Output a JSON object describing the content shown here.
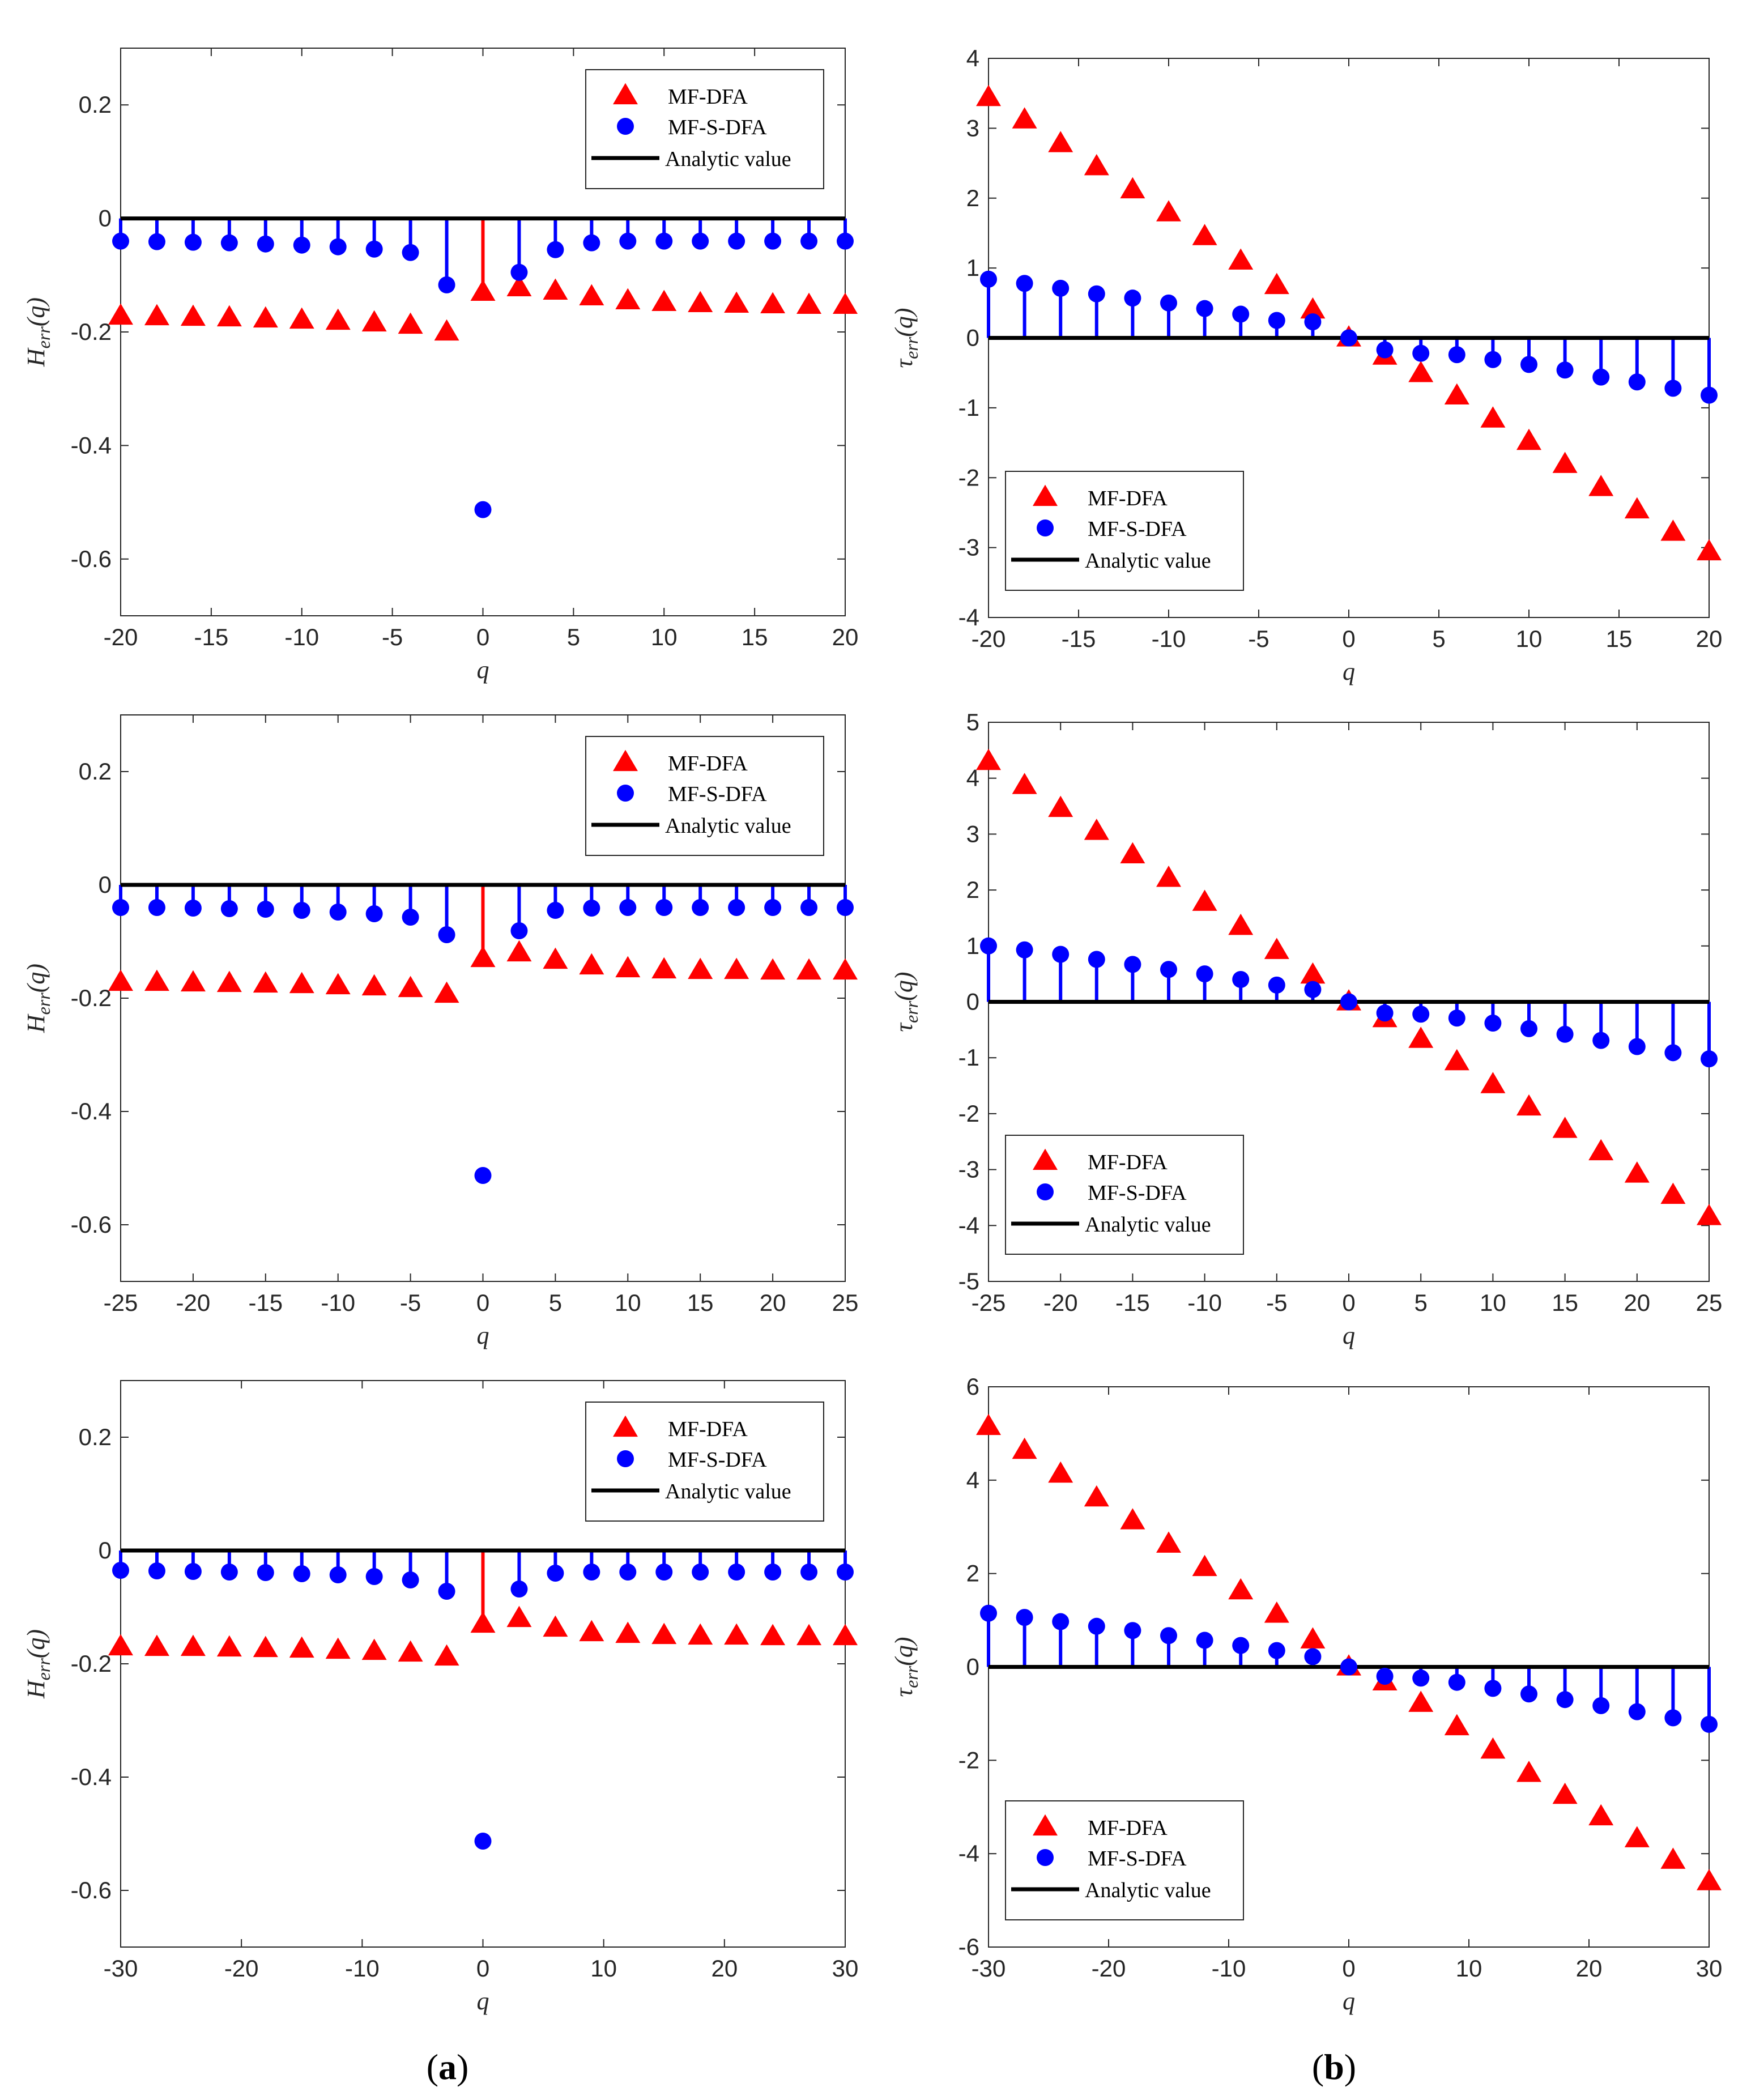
{
  "colors": {
    "mfdfa": "#ff0000",
    "mfsdfa": "#0000ff",
    "analytic": "#000000"
  },
  "legend": [
    "MF-DFA",
    "MF-S-DFA",
    "Analytic value"
  ],
  "panel_labels": {
    "a": "a",
    "b": "b"
  },
  "chart_data": [
    {
      "id": "h1",
      "type": "stem-scatter",
      "xlabel": "q",
      "ylabel_main": "H",
      "ylabel_sub": "err",
      "ylabel_arg": "(q)",
      "xlim": [
        -20,
        20
      ],
      "ylim": [
        -0.7,
        0.3
      ],
      "xticks": [
        "-20",
        "-15",
        "-10",
        "-5",
        "0",
        "5",
        "10",
        "15",
        "20"
      ],
      "xtick_values": [
        -20,
        -15,
        -10,
        -5,
        0,
        5,
        10,
        15,
        20
      ],
      "yticks": [
        "0.2",
        "0",
        "-0.2",
        "-0.4",
        "-0.6"
      ],
      "ytick_values": [
        0.2,
        0,
        -0.2,
        -0.4,
        -0.6
      ],
      "legend_pos": "top-right",
      "x": [
        -20,
        -18,
        -16,
        -14,
        -12,
        -10,
        -8,
        -6,
        -4,
        -2,
        0,
        2,
        4,
        6,
        8,
        10,
        12,
        14,
        16,
        18,
        20
      ],
      "series": [
        {
          "name": "MF-DFA",
          "values": [
            -0.172,
            -0.173,
            -0.174,
            -0.175,
            -0.177,
            -0.179,
            -0.181,
            -0.184,
            -0.188,
            -0.2,
            -0.13,
            -0.122,
            -0.128,
            -0.138,
            -0.145,
            -0.148,
            -0.15,
            -0.151,
            -0.152,
            -0.153,
            -0.153
          ],
          "stem_index": 10
        },
        {
          "name": "MF-S-DFA",
          "values": [
            -0.04,
            -0.041,
            -0.042,
            -0.043,
            -0.045,
            -0.047,
            -0.05,
            -0.054,
            -0.06,
            -0.117,
            -0.513,
            -0.095,
            -0.055,
            -0.043,
            -0.04,
            -0.04,
            -0.04,
            -0.04,
            -0.04,
            -0.04,
            -0.04
          ],
          "stem_skip_index": 10
        }
      ]
    },
    {
      "id": "t1",
      "type": "stem-scatter",
      "xlabel": "q",
      "ylabel_main": "τ",
      "ylabel_sub": "err",
      "ylabel_arg": "(q)",
      "xlim": [
        -20,
        20
      ],
      "ylim": [
        -4,
        4
      ],
      "xticks": [
        "-20",
        "-15",
        "-10",
        "-5",
        "0",
        "5",
        "10",
        "15",
        "20"
      ],
      "xtick_values": [
        -20,
        -15,
        -10,
        -5,
        0,
        5,
        10,
        15,
        20
      ],
      "yticks": [
        "4",
        "3",
        "2",
        "1",
        "0",
        "-1",
        "-2",
        "-3",
        "-4"
      ],
      "ytick_values": [
        4,
        3,
        2,
        1,
        0,
        -1,
        -2,
        -3,
        -4
      ],
      "legend_pos": "bottom-left",
      "x": [
        -20,
        -18,
        -16,
        -14,
        -12,
        -10,
        -8,
        -6,
        -4,
        -2,
        0,
        2,
        4,
        6,
        8,
        10,
        12,
        14,
        16,
        18,
        20
      ],
      "series": [
        {
          "name": "MF-DFA",
          "values": [
            3.44,
            3.12,
            2.78,
            2.45,
            2.12,
            1.79,
            1.45,
            1.1,
            0.75,
            0.4,
            0.0,
            -0.26,
            -0.51,
            -0.83,
            -1.16,
            -1.48,
            -1.81,
            -2.14,
            -2.46,
            -2.78,
            -3.06
          ]
        },
        {
          "name": "MF-S-DFA",
          "values": [
            0.84,
            0.78,
            0.71,
            0.63,
            0.57,
            0.5,
            0.42,
            0.34,
            0.25,
            0.23,
            0.0,
            -0.17,
            -0.22,
            -0.24,
            -0.31,
            -0.38,
            -0.46,
            -0.56,
            -0.63,
            -0.72,
            -0.82
          ],
          "stems": true
        }
      ]
    },
    {
      "id": "h2",
      "type": "stem-scatter",
      "xlabel": "q",
      "ylabel_main": "H",
      "ylabel_sub": "err",
      "ylabel_arg": "(q)",
      "xlim": [
        -25,
        25
      ],
      "ylim": [
        -0.7,
        0.3
      ],
      "xticks": [
        "-25",
        "-20",
        "-15",
        "-10",
        "-5",
        "0",
        "5",
        "10",
        "15",
        "20",
        "25"
      ],
      "xtick_values": [
        -25,
        -20,
        -15,
        -10,
        -5,
        0,
        5,
        10,
        15,
        20,
        25
      ],
      "yticks": [
        "0.2",
        "0",
        "-0.2",
        "-0.4",
        "-0.6"
      ],
      "ytick_values": [
        0.2,
        0,
        -0.2,
        -0.4,
        -0.6
      ],
      "legend_pos": "top-right",
      "x": [
        -25,
        -22.5,
        -20,
        -17.5,
        -15,
        -12.5,
        -10,
        -7.5,
        -5,
        -2.5,
        0,
        2.5,
        5,
        7.5,
        10,
        12.5,
        15,
        17.5,
        20,
        22.5,
        25
      ],
      "series": [
        {
          "name": "MF-DFA",
          "values": [
            -0.172,
            -0.172,
            -0.173,
            -0.174,
            -0.175,
            -0.176,
            -0.178,
            -0.18,
            -0.183,
            -0.193,
            -0.13,
            -0.12,
            -0.133,
            -0.143,
            -0.148,
            -0.15,
            -0.151,
            -0.151,
            -0.152,
            -0.152,
            -0.152
          ],
          "stem_index": 10
        },
        {
          "name": "MF-S-DFA",
          "values": [
            -0.04,
            -0.04,
            -0.041,
            -0.042,
            -0.043,
            -0.045,
            -0.048,
            -0.051,
            -0.057,
            -0.088,
            -0.513,
            -0.081,
            -0.045,
            -0.041,
            -0.04,
            -0.04,
            -0.04,
            -0.04,
            -0.04,
            -0.04,
            -0.04
          ],
          "stem_skip_index": 10
        }
      ]
    },
    {
      "id": "t2",
      "type": "stem-scatter",
      "xlabel": "q",
      "ylabel_main": "τ",
      "ylabel_sub": "err",
      "ylabel_arg": "(q)",
      "xlim": [
        -25,
        25
      ],
      "ylim": [
        -5,
        5
      ],
      "xticks": [
        "-25",
        "-20",
        "-15",
        "-10",
        "-5",
        "0",
        "5",
        "10",
        "15",
        "20",
        "25"
      ],
      "xtick_values": [
        -25,
        -20,
        -15,
        -10,
        -5,
        0,
        5,
        10,
        15,
        20,
        25
      ],
      "yticks": [
        "5",
        "4",
        "3",
        "2",
        "1",
        "0",
        "-1",
        "-2",
        "-3",
        "-4",
        "-5"
      ],
      "ytick_values": [
        5,
        4,
        3,
        2,
        1,
        0,
        -1,
        -2,
        -3,
        -4,
        -5
      ],
      "legend_pos": "bottom-left",
      "x": [
        -25,
        -22.5,
        -20,
        -17.5,
        -15,
        -12.5,
        -10,
        -7.5,
        -5,
        -2.5,
        0,
        2.5,
        5,
        7.5,
        10,
        12.5,
        15,
        17.5,
        20,
        22.5,
        25
      ],
      "series": [
        {
          "name": "MF-DFA",
          "values": [
            4.3,
            3.87,
            3.46,
            3.05,
            2.63,
            2.21,
            1.78,
            1.35,
            0.92,
            0.48,
            0.0,
            -0.3,
            -0.67,
            -1.07,
            -1.48,
            -1.88,
            -2.28,
            -2.68,
            -3.08,
            -3.46,
            -3.84
          ]
        },
        {
          "name": "MF-S-DFA",
          "values": [
            1.0,
            0.93,
            0.85,
            0.76,
            0.67,
            0.58,
            0.5,
            0.4,
            0.3,
            0.22,
            0.0,
            -0.2,
            -0.22,
            -0.29,
            -0.38,
            -0.48,
            -0.58,
            -0.69,
            -0.8,
            -0.91,
            -1.02
          ],
          "stems": true
        }
      ]
    },
    {
      "id": "h3",
      "type": "stem-scatter",
      "xlabel": "q",
      "ylabel_main": "H",
      "ylabel_sub": "err",
      "ylabel_arg": "(q)",
      "xlim": [
        -30,
        30
      ],
      "ylim": [
        -0.7,
        0.3
      ],
      "xticks": [
        "-30",
        "-20",
        "-10",
        "0",
        "10",
        "20",
        "30"
      ],
      "xtick_values": [
        -30,
        -20,
        -10,
        0,
        10,
        20,
        30
      ],
      "yticks": [
        "0.2",
        "0",
        "-0.2",
        "-0.4",
        "-0.6"
      ],
      "ytick_values": [
        0.2,
        0,
        -0.2,
        -0.4,
        -0.6
      ],
      "legend_pos": "top-right",
      "x": [
        -30,
        -27,
        -24,
        -21,
        -18,
        -15,
        -12,
        -9,
        -6,
        -3,
        0,
        3,
        6,
        9,
        12,
        15,
        18,
        21,
        24,
        27,
        30
      ],
      "series": [
        {
          "name": "MF-DFA",
          "values": [
            -0.17,
            -0.171,
            -0.171,
            -0.172,
            -0.173,
            -0.174,
            -0.176,
            -0.178,
            -0.181,
            -0.188,
            -0.13,
            -0.12,
            -0.137,
            -0.145,
            -0.148,
            -0.15,
            -0.151,
            -0.151,
            -0.152,
            -0.152,
            -0.152
          ],
          "stem_index": 10
        },
        {
          "name": "MF-S-DFA",
          "values": [
            -0.035,
            -0.036,
            -0.037,
            -0.038,
            -0.039,
            -0.041,
            -0.043,
            -0.046,
            -0.052,
            -0.072,
            -0.513,
            -0.068,
            -0.04,
            -0.038,
            -0.038,
            -0.038,
            -0.038,
            -0.038,
            -0.038,
            -0.038,
            -0.038
          ],
          "stem_skip_index": 10
        }
      ]
    },
    {
      "id": "t3",
      "type": "stem-scatter",
      "xlabel": "q",
      "ylabel_main": "τ",
      "ylabel_sub": "err",
      "ylabel_arg": "(q)",
      "xlim": [
        -30,
        30
      ],
      "ylim": [
        -6,
        6
      ],
      "xticks": [
        "-30",
        "-20",
        "-10",
        "0",
        "10",
        "20",
        "30"
      ],
      "xtick_values": [
        -30,
        -20,
        -10,
        0,
        10,
        20,
        30
      ],
      "yticks": [
        "6",
        "4",
        "2",
        "0",
        "-2",
        "-4",
        "-6"
      ],
      "ytick_values": [
        6,
        4,
        2,
        0,
        -2,
        -4,
        -6
      ],
      "legend_pos": "bottom-left",
      "x": [
        -30,
        -27,
        -24,
        -21,
        -18,
        -15,
        -12,
        -9,
        -6,
        -3,
        0,
        3,
        6,
        9,
        12,
        15,
        18,
        21,
        24,
        27,
        30
      ],
      "series": [
        {
          "name": "MF-DFA",
          "values": [
            5.15,
            4.64,
            4.13,
            3.62,
            3.13,
            2.63,
            2.13,
            1.63,
            1.13,
            0.58,
            0.0,
            -0.32,
            -0.78,
            -1.28,
            -1.78,
            -2.28,
            -2.75,
            -3.21,
            -3.68,
            -4.14,
            -4.6
          ]
        },
        {
          "name": "MF-S-DFA",
          "values": [
            1.15,
            1.06,
            0.97,
            0.87,
            0.78,
            0.67,
            0.57,
            0.46,
            0.35,
            0.22,
            0.0,
            -0.2,
            -0.24,
            -0.33,
            -0.46,
            -0.58,
            -0.7,
            -0.83,
            -0.96,
            -1.09,
            -1.23
          ],
          "stems": true
        }
      ]
    }
  ]
}
